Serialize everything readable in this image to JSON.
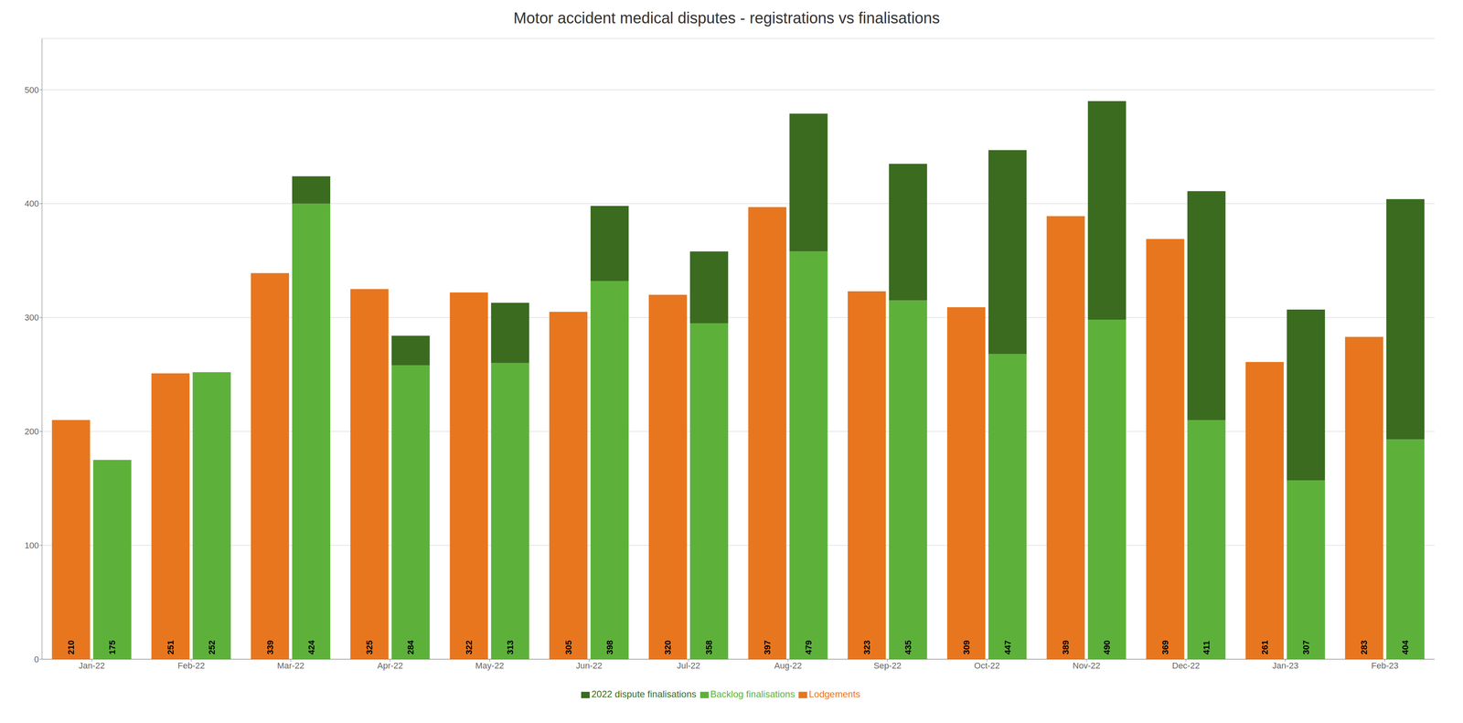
{
  "chart_data": {
    "type": "bar",
    "title": "Motor accident medical disputes - registrations vs finalisations",
    "categories": [
      "Jan-22",
      "Feb-22",
      "Mar-22",
      "Apr-22",
      "May-22",
      "Jun-22",
      "Jul-22",
      "Aug-22",
      "Sep-22",
      "Oct-22",
      "Nov-22",
      "Dec-22",
      "Jan-23",
      "Feb-23"
    ],
    "series": [
      {
        "name": "Lodgements",
        "color": "#E8761E",
        "values": [
          210,
          251,
          339,
          325,
          322,
          305,
          320,
          397,
          323,
          309,
          389,
          369,
          261,
          283
        ]
      },
      {
        "name": "Backlog finalisations",
        "color": "#5DB13A",
        "stacked": true,
        "values": [
          175,
          252,
          400,
          258,
          260,
          332,
          295,
          358,
          315,
          268,
          298,
          210,
          157,
          193
        ]
      },
      {
        "name": "2022 dispute finalisations",
        "color": "#3A6B1F",
        "stacked": true,
        "values": [
          0,
          0,
          24,
          26,
          53,
          66,
          63,
          121,
          120,
          179,
          192,
          201,
          150,
          211
        ]
      }
    ],
    "totals": [
      175,
      252,
      424,
      284,
      313,
      398,
      358,
      479,
      435,
      447,
      490,
      411,
      307,
      404
    ],
    "data_labels": true,
    "ylim": [
      0,
      545
    ],
    "yticks": [
      0,
      100,
      200,
      300,
      400,
      500
    ],
    "grid": true,
    "legend": "bottom"
  }
}
